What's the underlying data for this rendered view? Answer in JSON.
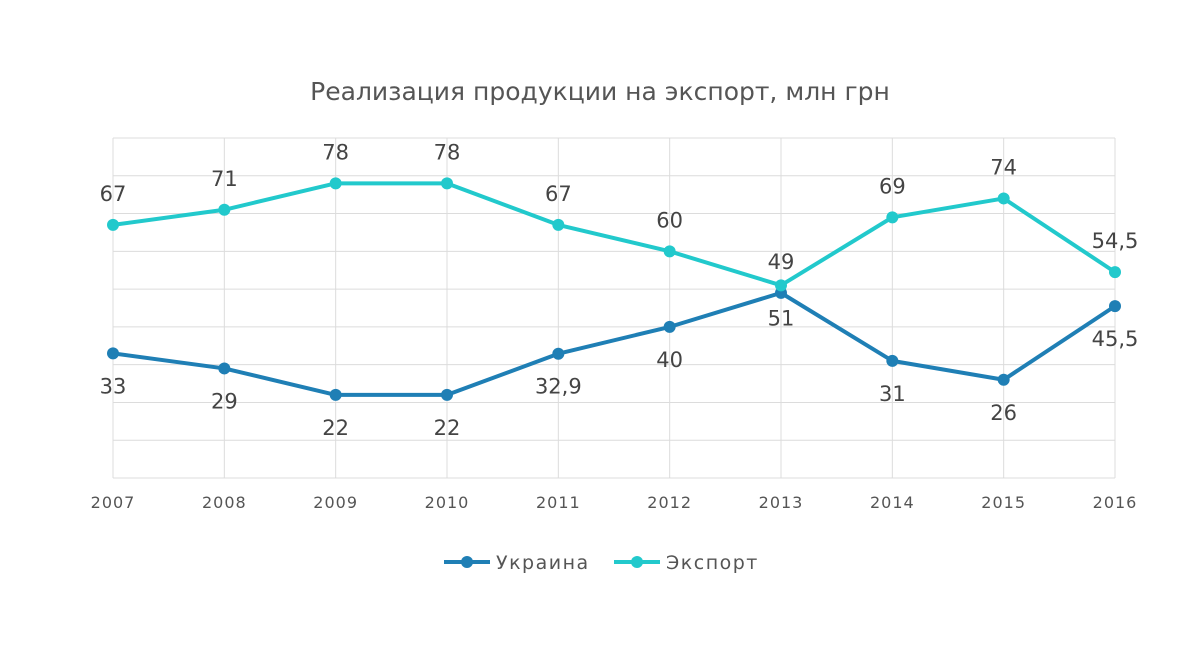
{
  "chart_data": {
    "type": "line",
    "title": "Реализация продукции на экспорт, млн грн",
    "xlabel": "",
    "ylabel": "",
    "ylim": [
      0,
      90
    ],
    "y_grid_step": 10,
    "grid": true,
    "legend_placement": "bottom-center",
    "categories": [
      "2007",
      "2008",
      "2009",
      "2010",
      "2011",
      "2012",
      "2013",
      "2014",
      "2015",
      "2016"
    ],
    "series": [
      {
        "name": "Украина",
        "color": "#1f7fb5",
        "values": [
          33,
          29,
          22,
          22,
          32.9,
          40,
          49,
          31,
          26,
          45.5
        ],
        "labels": [
          "33",
          "29",
          "22",
          "22",
          "32,9",
          "40",
          "49",
          "31",
          "26",
          "45,5"
        ],
        "label_position": [
          "below",
          "below",
          "below",
          "below",
          "below",
          "below",
          "above",
          "below",
          "below",
          "below"
        ]
      },
      {
        "name": "Экспорт",
        "color": "#22c9cc",
        "values": [
          67,
          71,
          78,
          78,
          67,
          60,
          51,
          69,
          74,
          54.5
        ],
        "labels": [
          "67",
          "71",
          "78",
          "78",
          "67",
          "60",
          "51",
          "69",
          "74",
          "54,5"
        ],
        "label_position": [
          "above",
          "above",
          "above",
          "above",
          "above",
          "above",
          "below",
          "above",
          "above",
          "above"
        ]
      }
    ]
  }
}
